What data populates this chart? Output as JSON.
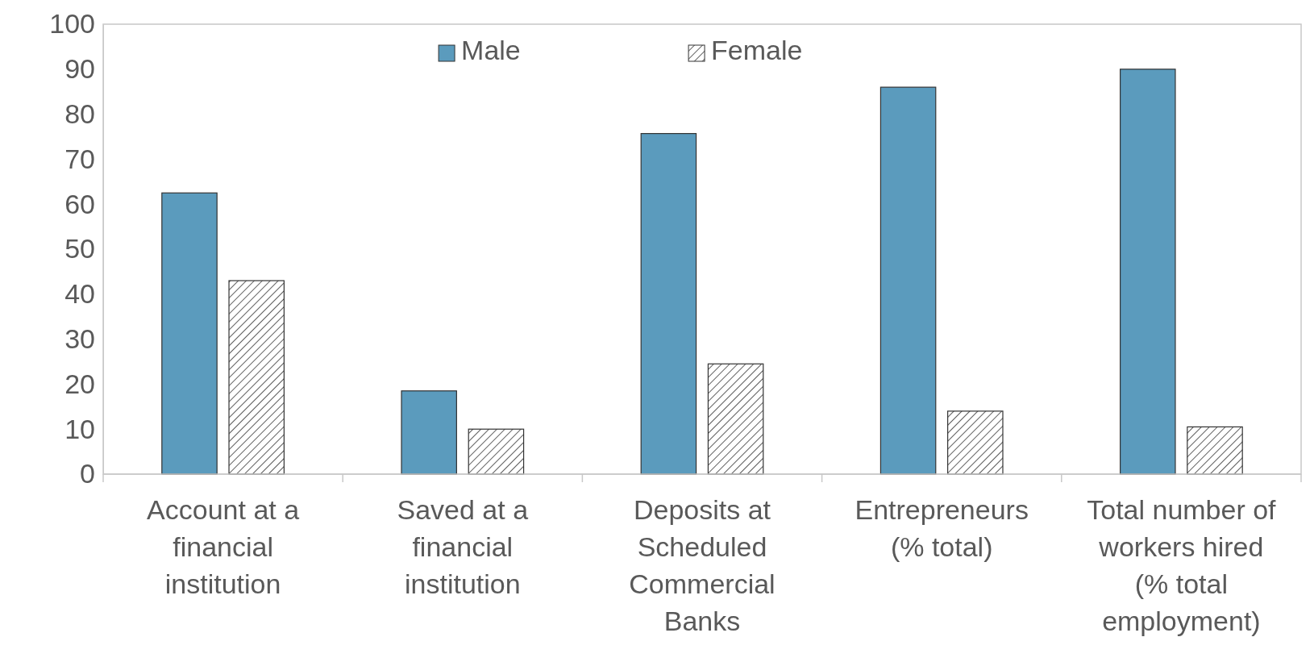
{
  "chart_data": {
    "type": "bar",
    "categories": [
      "Account at a financial institution",
      "Saved at a financial institution",
      "Deposits at Scheduled Commercial Banks",
      "Entrepreneurs (% total)",
      "Total number of workers hired (% total employment)"
    ],
    "series": [
      {
        "name": "Male",
        "color": "#5b9bbd",
        "values": [
          62.5,
          18.5,
          75.7,
          86,
          90
        ]
      },
      {
        "name": "Female",
        "color": "#333333",
        "values": [
          43,
          10,
          24.5,
          14,
          10.5
        ]
      }
    ],
    "ylim": [
      0,
      100
    ],
    "yticks": [
      0,
      10,
      20,
      30,
      40,
      50,
      60,
      70,
      80,
      90,
      100
    ],
    "grid": false,
    "legend": "top"
  }
}
